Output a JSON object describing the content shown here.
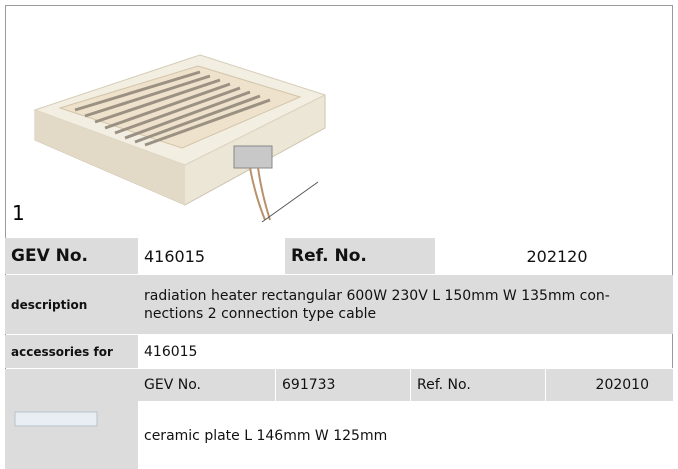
{
  "figure": {
    "label": "1"
  },
  "product": {
    "gev_label": "GEV No.",
    "gev_no": "416015",
    "ref_label": "Ref. No.",
    "ref_no": "202120",
    "description_label": "description",
    "description": "radiation heater  rectangular 600W 230V L 150mm W 135mm con-nections 2 connection type cable",
    "accessories_label": "accessories for",
    "accessories_for": "416015"
  },
  "accessory": {
    "gev_label": "GEV No.",
    "gev_no": "691733",
    "ref_label": "Ref. No.",
    "ref_no": "202010",
    "description": "ceramic plate  L 146mm W 125mm"
  }
}
